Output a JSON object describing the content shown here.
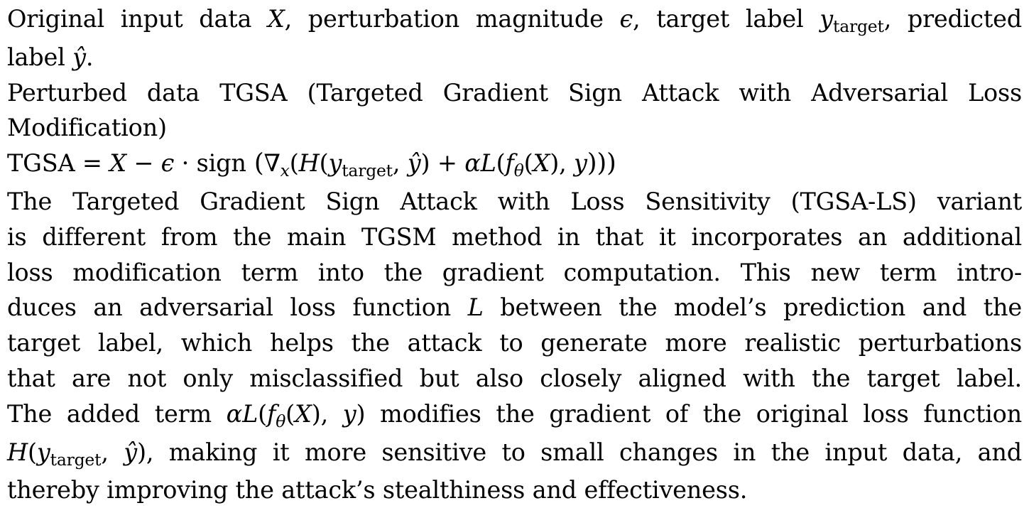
{
  "algorithm": {
    "input": {
      "before_X": "Original input data ",
      "X": "X",
      "after_X": ", perturbation magnitude ",
      "epsilon": "ϵ",
      "after_epsilon": ", target label ",
      "y": "y",
      "target_sub": "target",
      "after_target": ", predicted",
      "line2_before": "label ",
      "yhat": "ŷ",
      "line2_after": "."
    },
    "output": {
      "line1": "Perturbed data TGSA (Targeted Gradient Sign Attack with Adversarial Loss",
      "line2": "Modification)"
    },
    "formula": {
      "lhs": "TGSA",
      "eq": " = ",
      "X": "X",
      "minus": " − ",
      "epsilon": "ϵ",
      "cdot": " · ",
      "sign": "sign",
      "open_paren": " (",
      "nabla": "∇",
      "nabla_sub": "x",
      "open2": "(",
      "H": "H",
      "open3": "(",
      "y": "y",
      "target_sub": "target",
      "comma": ", ",
      "yhat": "ŷ",
      "close3": ")",
      "plus": " + ",
      "alpha": "α",
      "L": "L",
      "open4": "(",
      "f": "f",
      "theta": "θ",
      "open5": "(",
      "X2": "X",
      "close5": ")",
      "comma2": ", ",
      "y2": "y",
      "close_all": ")))"
    },
    "description": {
      "line1": "The Targeted Gradient Sign Attack with Loss Sensitivity (TGSA-LS) variant",
      "line2": "is different from the main TGSM method in that it incorporates an additional",
      "line3": "loss modification term into the gradient computation.  This new term intro-",
      "line4_before": "duces an adversarial loss function ",
      "line4_L": "L",
      "line4_after": " between the model’s prediction and the",
      "line5": "target label, which helps the attack to generate more realistic perturbations",
      "line6": "that are not only misclassified but also closely aligned with the target label.",
      "line7_before": "The added term ",
      "line7_alpha": "α",
      "line7_L": "L",
      "line7_open": "(",
      "line7_f": "f",
      "line7_theta": "θ",
      "line7_open2": "(",
      "line7_X": "X",
      "line7_close2": ")",
      "line7_comma": ", ",
      "line7_y": "y",
      "line7_close": ")",
      "line7_after": " modifies the gradient of the original loss function",
      "line8_H": "H",
      "line8_open": "(",
      "line8_y": "y",
      "line8_target_sub": "target",
      "line8_comma": ", ",
      "line8_yhat": "ŷ",
      "line8_close": ")",
      "line8_after": ", making it more sensitive to small changes in the input data, and",
      "line9": "thereby improving the attack’s stealthiness and effectiveness."
    }
  }
}
